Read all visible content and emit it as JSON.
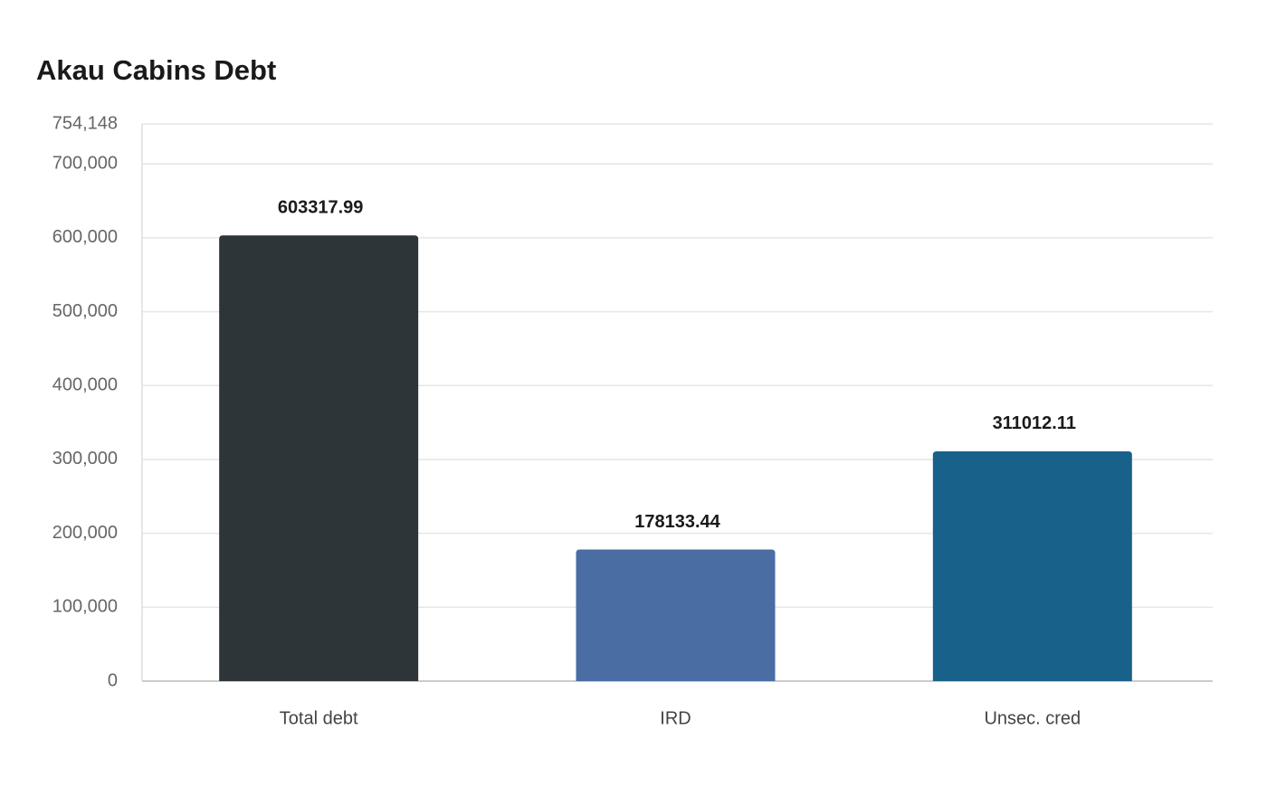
{
  "chart_data": {
    "type": "bar",
    "title": "Akau Cabins Debt",
    "categories": [
      "Total debt",
      "IRD",
      "Unsec. cred"
    ],
    "values": [
      603317.99,
      178133.44,
      311012.11
    ],
    "colors": [
      "#2e3538",
      "#4a6da4",
      "#17618a"
    ],
    "ylim": [
      0,
      754148
    ],
    "yticks": [
      0,
      {
        "value": 100000,
        "label": "100,000"
      },
      {
        "value": 200000,
        "label": "200,000"
      },
      {
        "value": 300000,
        "label": "300,000"
      },
      {
        "value": 400000,
        "label": "400,000"
      },
      {
        "value": 500000,
        "label": "500,000"
      },
      {
        "value": 600000,
        "label": "600,000"
      },
      {
        "value": 700000,
        "label": "700,000"
      },
      {
        "value": 754148,
        "label": "754,148"
      }
    ],
    "grid": true
  }
}
